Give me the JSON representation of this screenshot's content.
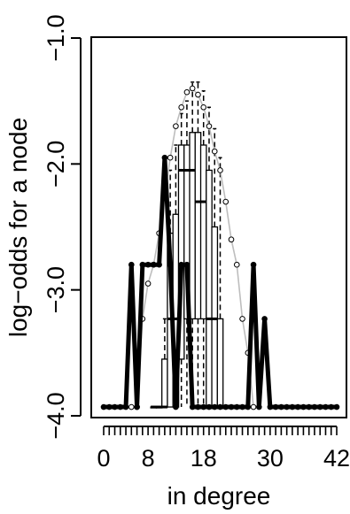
{
  "chart_data": {
    "type": "boxplot",
    "xlabel": "in degree",
    "ylabel": "log−odds for a node",
    "xlim": [
      -1,
      43
    ],
    "ylim": [
      -4.0,
      -1.0
    ],
    "x_ticks": [
      0,
      8,
      18,
      30,
      42
    ],
    "x_tick_labels": [
      "0",
      "8",
      "18",
      "30",
      "42"
    ],
    "y_ticks": [
      -4.0,
      -3.0,
      -2.0,
      -1.0
    ],
    "y_tick_labels": [
      "−4.0",
      "−3.0",
      "−2.0",
      "−1.0"
    ],
    "grid": false,
    "legend": "none",
    "series": [
      {
        "kind": "thick-line-with-points",
        "color": "#000000",
        "x": [
          0,
          1,
          2,
          3,
          4,
          5,
          6,
          7,
          8,
          9,
          10,
          11,
          12,
          13,
          14,
          15,
          16,
          17,
          18,
          19,
          20,
          21,
          22,
          23,
          24,
          25,
          26,
          27,
          28,
          29,
          30,
          31,
          32,
          33,
          34,
          35,
          36,
          37,
          38,
          39,
          40,
          41,
          42
        ],
        "y": [
          -3.93,
          -3.93,
          -3.93,
          -3.93,
          -3.93,
          -2.8,
          -3.93,
          -2.8,
          -2.8,
          -2.8,
          -2.8,
          -1.95,
          -2.8,
          -3.93,
          -2.8,
          -2.8,
          -3.93,
          -3.93,
          -3.93,
          -3.93,
          -3.93,
          -3.93,
          -3.93,
          -3.93,
          -3.93,
          -3.93,
          -3.93,
          -2.8,
          -3.93,
          -3.23,
          -3.93,
          -3.93,
          -3.93,
          -3.93,
          -3.93,
          -3.93,
          -3.93,
          -3.93,
          -3.93,
          -3.93,
          -3.93,
          -3.93,
          -3.93
        ]
      },
      {
        "kind": "gray-line-with-open-circles",
        "color": "#bdbdbd",
        "x": [
          5,
          6,
          7,
          8,
          9,
          10,
          11,
          12,
          13,
          14,
          15,
          16,
          17,
          18,
          19,
          20,
          21,
          22,
          23,
          24,
          25,
          26,
          27
        ],
        "y": [
          -3.93,
          -3.93,
          -3.23,
          -2.95,
          -2.8,
          -2.55,
          -2.25,
          -1.95,
          -1.7,
          -1.55,
          -1.43,
          -1.4,
          -1.45,
          -1.55,
          -1.7,
          -1.9,
          -2.05,
          -2.3,
          -2.6,
          -2.8,
          -3.23,
          -3.5,
          -3.93
        ]
      }
    ],
    "boxes": [
      {
        "x": 9,
        "q1": -3.93,
        "median": -3.93,
        "q3": -3.93,
        "whisker_low": -3.93,
        "whisker_high": -3.93
      },
      {
        "x": 10,
        "q1": -3.93,
        "median": -3.93,
        "q3": -3.93,
        "whisker_low": -3.93,
        "whisker_high": -3.93
      },
      {
        "x": 11,
        "q1": -3.93,
        "median": -3.93,
        "q3": -3.55,
        "whisker_low": -3.93,
        "whisker_high": -3.23
      },
      {
        "x": 12,
        "q1": -3.93,
        "median": -3.23,
        "q3": -2.55,
        "whisker_low": -3.93,
        "whisker_high": -2.05
      },
      {
        "x": 13,
        "q1": -3.93,
        "median": -3.23,
        "q3": -2.4,
        "whisker_low": -3.93,
        "whisker_high": -1.85
      },
      {
        "x": 14,
        "q1": -3.55,
        "median": -2.05,
        "q3": -1.85,
        "whisker_low": -3.93,
        "whisker_high": -1.6
      },
      {
        "x": 15,
        "q1": -3.23,
        "median": -2.05,
        "q3": -1.85,
        "whisker_low": -3.93,
        "whisker_high": -1.5
      },
      {
        "x": 16,
        "q1": -3.23,
        "median": -2.05,
        "q3": -1.75,
        "whisker_low": -3.93,
        "whisker_high": -1.35
      },
      {
        "x": 17,
        "q1": -3.23,
        "median": -2.3,
        "q3": -1.75,
        "whisker_low": -3.93,
        "whisker_high": -1.35
      },
      {
        "x": 18,
        "q1": -3.23,
        "median": -2.3,
        "q3": -1.85,
        "whisker_low": -3.93,
        "whisker_high": -1.42
      },
      {
        "x": 19,
        "q1": -3.93,
        "median": -3.23,
        "q3": -2.05,
        "whisker_low": -3.93,
        "whisker_high": -1.55
      },
      {
        "x": 20,
        "q1": -3.93,
        "median": -3.23,
        "q3": -2.5,
        "whisker_low": -3.93,
        "whisker_high": -1.72
      },
      {
        "x": 21,
        "q1": -3.93,
        "median": -3.93,
        "q3": -3.23,
        "whisker_low": -3.93,
        "whisker_high": -1.95
      }
    ]
  }
}
